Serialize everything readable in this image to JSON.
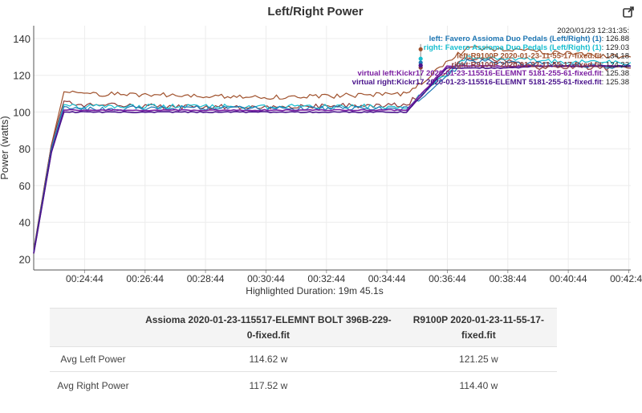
{
  "title": "Left/Right Power",
  "export_icon": "export-icon",
  "chart_data": {
    "type": "line",
    "ylabel": "Power (watts)",
    "xlabel": "Highlighted Duration: 19m 45.1s",
    "ylim": [
      14,
      147
    ],
    "xlim": [
      "00:23:03",
      "00:42:48"
    ],
    "x_ticks": [
      "00:24:44",
      "00:26:44",
      "00:28:44",
      "00:30:44",
      "00:32:44",
      "00:34:44",
      "00:36:44",
      "00:38:44",
      "00:40:44",
      "00:42:44"
    ],
    "y_ticks": [
      20,
      40,
      60,
      80,
      100,
      120,
      140
    ],
    "grid": true,
    "legend_position": "top-right",
    "tooltip": {
      "time": "2020/01/23 12:31:35:",
      "hover_x": "00:35:51",
      "entries": [
        {
          "label": "left: Favero Assioma Duo Pedals (Left/Right) (1)",
          "value": "126.88",
          "color": "#1f77b4"
        },
        {
          "label": "right: Favero Assioma Duo Pedals (Left/Right) (1)",
          "value": "129.03",
          "color": "#17becf"
        },
        {
          "label": "left:R9100P 2020-01-23-11-55-17-fixed.fit",
          "value": "134.18",
          "color": "#a0522d"
        },
        {
          "label": "right:R9100P 2020-01-23-11-55-17-fixed.fit",
          "value": "124.22",
          "color": "#8c3b3b"
        },
        {
          "label": "virtual left:Kickr17 2020-01-23-115516-ELEMNT 5181-255-61-fixed.fit",
          "value": "125.38",
          "color": "#7b1fa2"
        },
        {
          "label": "virtual right:Kickr17 2020-01-23-115516-ELEMNT 5181-255-61-fixed.fit",
          "value": "125.38",
          "color": "#4a148c"
        }
      ]
    },
    "series": [
      {
        "color": "#a0522d",
        "values": [
          [
            0,
            25
          ],
          [
            35,
            82
          ],
          [
            60,
            111
          ],
          [
            100,
            110
          ],
          [
            300,
            109
          ],
          [
            500,
            108
          ],
          [
            740,
            110
          ],
          [
            860,
            135
          ],
          [
            950,
            134
          ],
          [
            1010,
            133
          ],
          [
            1100,
            131
          ],
          [
            1185,
            130
          ]
        ]
      },
      {
        "color": "#8c3b3b",
        "values": [
          [
            0,
            25
          ],
          [
            35,
            82
          ],
          [
            60,
            106
          ],
          [
            100,
            104
          ],
          [
            300,
            103
          ],
          [
            500,
            103
          ],
          [
            740,
            104
          ],
          [
            860,
            130
          ],
          [
            950,
            127
          ],
          [
            1010,
            124
          ],
          [
            1100,
            124
          ],
          [
            1185,
            124
          ]
        ]
      },
      {
        "color": "#17becf",
        "values": [
          [
            0,
            24
          ],
          [
            35,
            80
          ],
          [
            60,
            104
          ],
          [
            100,
            103
          ],
          [
            300,
            103
          ],
          [
            500,
            103
          ],
          [
            740,
            103
          ],
          [
            860,
            130
          ],
          [
            950,
            129
          ],
          [
            1010,
            128
          ],
          [
            1100,
            127
          ],
          [
            1185,
            127
          ]
        ]
      },
      {
        "color": "#1f77b4",
        "values": [
          [
            0,
            24
          ],
          [
            35,
            80
          ],
          [
            60,
            103
          ],
          [
            100,
            102
          ],
          [
            300,
            102
          ],
          [
            500,
            102
          ],
          [
            740,
            102
          ],
          [
            860,
            128
          ],
          [
            950,
            127
          ],
          [
            1010,
            126
          ],
          [
            1100,
            125
          ],
          [
            1185,
            125
          ]
        ]
      },
      {
        "color": "#7b1fa2",
        "values": [
          [
            0,
            23
          ],
          [
            35,
            78
          ],
          [
            60,
            101
          ],
          [
            100,
            101
          ],
          [
            300,
            101
          ],
          [
            500,
            101
          ],
          [
            740,
            101
          ],
          [
            820,
            125
          ],
          [
            950,
            125
          ],
          [
            1010,
            125
          ],
          [
            1100,
            125
          ],
          [
            1185,
            125
          ]
        ]
      },
      {
        "color": "#4a148c",
        "values": [
          [
            0,
            23
          ],
          [
            35,
            78
          ],
          [
            60,
            100
          ],
          [
            100,
            100
          ],
          [
            300,
            100
          ],
          [
            500,
            100
          ],
          [
            740,
            100
          ],
          [
            820,
            124
          ],
          [
            950,
            124
          ],
          [
            1010,
            125
          ],
          [
            1100,
            125
          ],
          [
            1185,
            125
          ]
        ]
      }
    ]
  },
  "table": {
    "headers": [
      "",
      "Assioma 2020-01-23-115517-ELEMNT BOLT 396B-229-0-fixed.fit",
      "R9100P 2020-01-23-11-55-17-fixed.fit"
    ],
    "rows": [
      {
        "label": "Avg Left Power",
        "values": [
          "114.62 w",
          "121.25 w"
        ]
      },
      {
        "label": "Avg Right Power",
        "values": [
          "117.52 w",
          "114.40 w"
        ]
      }
    ]
  }
}
